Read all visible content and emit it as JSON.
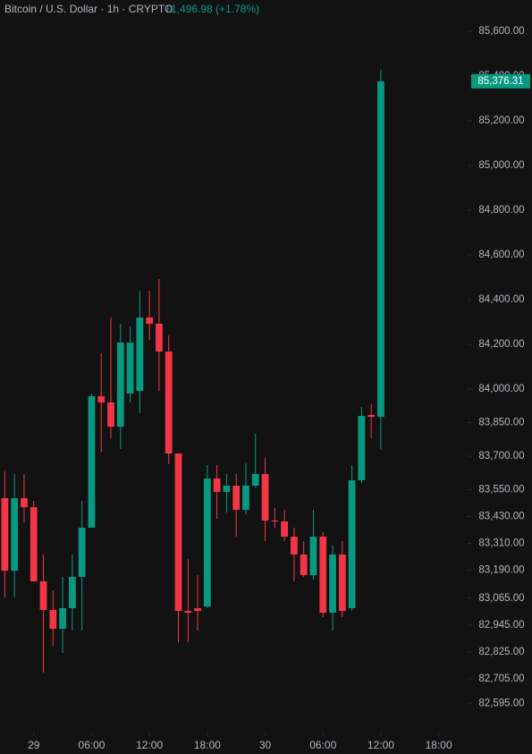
{
  "chart_data": {
    "type": "candlestick",
    "title": "Bitcoin / U.S. Dollar · 1h · CRYPTO",
    "change": "+1,496.98 (+1.78%)",
    "last_price": {
      "value": 85376.31,
      "label": "85,376.31"
    },
    "up_color": "#089981",
    "down_color": "#f23645",
    "x": [
      -3,
      -2,
      -1,
      0,
      1,
      2,
      3,
      4,
      5,
      6,
      7,
      8,
      9,
      10,
      11,
      12,
      13,
      14,
      15,
      16,
      17,
      18,
      19,
      20,
      21,
      22,
      23,
      24,
      25,
      26,
      27,
      28,
      29,
      30,
      31,
      32,
      33,
      34,
      35,
      36
    ],
    "open": [
      83512,
      83188,
      83512,
      83472,
      83140,
      83012,
      82928,
      83020,
      83160,
      83380,
      83968,
      83940,
      83832,
      83980,
      83992,
      84320,
      84292,
      84168,
      83712,
      83008,
      83020,
      83028,
      83600,
      83540,
      83568,
      83460,
      83568,
      83620,
      83412,
      83408,
      83340,
      83260,
      83168,
      83340,
      83000,
      83260,
      83020,
      83592,
      83884,
      83876
    ],
    "high": [
      83632,
      83620,
      83620,
      83500,
      83260,
      83100,
      83160,
      83260,
      83500,
      83980,
      84160,
      84320,
      84292,
      84280,
      84440,
      84440,
      84492,
      84240,
      83712,
      83240,
      83168,
      83660,
      83660,
      83620,
      83620,
      83668,
      83800,
      83692,
      83468,
      83460,
      83380,
      83320,
      83460,
      83360,
      83300,
      83320,
      83660,
      83920,
      83932,
      85428
    ],
    "low": [
      83068,
      83068,
      83400,
      83140,
      82732,
      82852,
      82820,
      82920,
      82920,
      83380,
      83720,
      83780,
      83732,
      83940,
      83892,
      84220,
      83992,
      83664,
      82868,
      82868,
      82920,
      83020,
      83420,
      83448,
      83340,
      83440,
      83560,
      83320,
      83380,
      83320,
      83140,
      83160,
      83148,
      82980,
      82920,
      82980,
      83008,
      83580,
      83780,
      83728
    ],
    "close": [
      83188,
      83512,
      83472,
      83140,
      83012,
      82928,
      83020,
      83160,
      83380,
      83968,
      83940,
      83832,
      84208,
      84208,
      84320,
      84292,
      84168,
      83712,
      83008,
      83000,
      83008,
      83600,
      83540,
      83568,
      83460,
      83568,
      83620,
      83412,
      83408,
      83340,
      83260,
      83168,
      83340,
      83000,
      83260,
      83008,
      83592,
      83880,
      83876,
      85376.31
    ],
    "xlim": [
      -3.5,
      45
    ],
    "xticks": [
      {
        "value": 0,
        "label": "29"
      },
      {
        "value": 6,
        "label": "06:00"
      },
      {
        "value": 12,
        "label": "12:00"
      },
      {
        "value": 18,
        "label": "18:00"
      },
      {
        "value": 24,
        "label": "30"
      },
      {
        "value": 30,
        "label": "06:00"
      },
      {
        "value": 36,
        "label": "12:00"
      },
      {
        "value": 42,
        "label": "18:00"
      }
    ],
    "ylim": [
      82480,
      85740
    ],
    "yticks": [
      {
        "value": 85600,
        "label": "85,600.00"
      },
      {
        "value": 85400,
        "label": "85,400.00"
      },
      {
        "value": 85200,
        "label": "85,200.00"
      },
      {
        "value": 85000,
        "label": "85,000.00"
      },
      {
        "value": 84800,
        "label": "84,800.00"
      },
      {
        "value": 84600,
        "label": "84,600.00"
      },
      {
        "value": 84400,
        "label": "84,400.00"
      },
      {
        "value": 84200,
        "label": "84,200.00"
      },
      {
        "value": 84000,
        "label": "84,000.00"
      },
      {
        "value": 83850,
        "label": "83,850.00"
      },
      {
        "value": 83700,
        "label": "83,700.00"
      },
      {
        "value": 83550,
        "label": "83,550.00"
      },
      {
        "value": 83430,
        "label": "83,430.00"
      },
      {
        "value": 83310,
        "label": "83,310.00"
      },
      {
        "value": 83190,
        "label": "83,190.00"
      },
      {
        "value": 83065,
        "label": "83,065.00"
      },
      {
        "value": 82945,
        "label": "82,945.00"
      },
      {
        "value": 82825,
        "label": "82,825.00"
      },
      {
        "value": 82705,
        "label": "82,705.00"
      },
      {
        "value": 82595,
        "label": "82,595.00"
      }
    ]
  }
}
